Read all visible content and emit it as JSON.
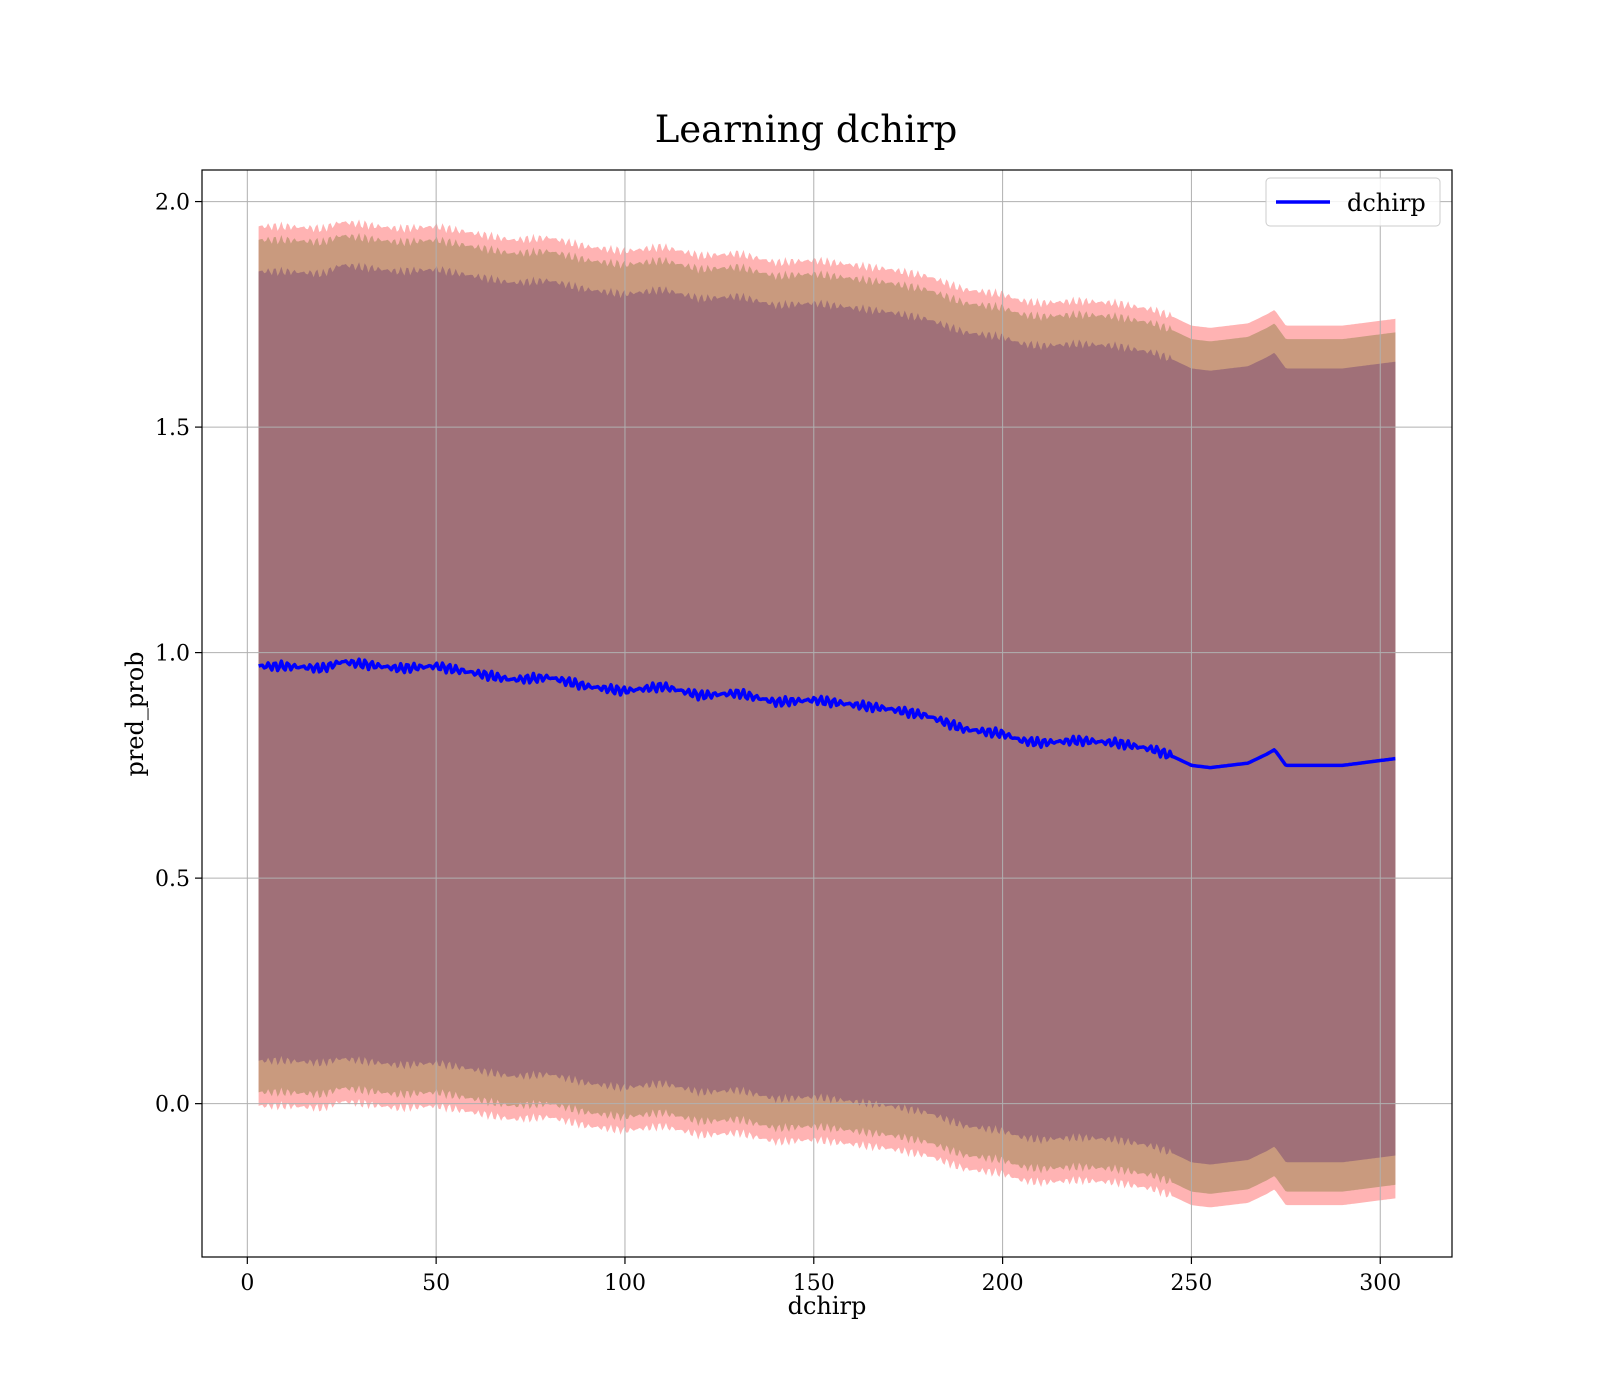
{
  "chart_data": {
    "type": "line",
    "title": "Learning dchirp",
    "xlabel": "dchirp",
    "ylabel": "pred_prob",
    "xlim": [
      -12,
      319
    ],
    "ylim": [
      -0.34,
      2.07
    ],
    "xticks": [
      0,
      50,
      100,
      150,
      200,
      250,
      300
    ],
    "xtick_labels": [
      "0",
      "50",
      "100",
      "150",
      "200",
      "250",
      "300"
    ],
    "yticks": [
      0.0,
      0.5,
      1.0,
      1.5,
      2.0
    ],
    "ytick_labels": [
      "0.0",
      "0.5",
      "1.0",
      "1.5",
      "2.0"
    ],
    "grid": true,
    "legend": {
      "placement": "top-right",
      "entries": [
        "dchirp"
      ]
    },
    "colors": {
      "line": "#0000ff",
      "band_outer": "#ffb3b3",
      "band_middle": "#c99a7e",
      "band_inner": "#a07078",
      "grid": "#b0b0b0"
    },
    "series": [
      {
        "name": "dchirp",
        "x": [
          3,
          10,
          20,
          25,
          30,
          40,
          50,
          60,
          70,
          80,
          90,
          100,
          110,
          120,
          130,
          140,
          150,
          160,
          170,
          180,
          190,
          200,
          205,
          210,
          220,
          230,
          240,
          245,
          250,
          255,
          260,
          265,
          270,
          272,
          275,
          290,
          304
        ],
        "y": [
          0.97,
          0.97,
          0.965,
          0.98,
          0.975,
          0.965,
          0.97,
          0.955,
          0.94,
          0.945,
          0.925,
          0.915,
          0.925,
          0.905,
          0.91,
          0.89,
          0.895,
          0.885,
          0.875,
          0.86,
          0.83,
          0.82,
          0.805,
          0.8,
          0.805,
          0.8,
          0.785,
          0.77,
          0.75,
          0.745,
          0.75,
          0.755,
          0.775,
          0.785,
          0.75,
          0.75,
          0.765
        ],
        "band_inner_halfwidth": [
          0.875,
          0.875,
          0.875,
          0.88,
          0.88,
          0.88,
          0.88,
          0.88,
          0.88,
          0.88,
          0.88,
          0.88,
          0.88,
          0.88,
          0.88,
          0.88,
          0.88,
          0.88,
          0.88,
          0.88,
          0.88,
          0.88,
          0.88,
          0.88,
          0.88,
          0.88,
          0.88,
          0.88,
          0.88,
          0.88,
          0.88,
          0.88,
          0.88,
          0.88,
          0.88,
          0.88,
          0.88
        ],
        "band_middle_halfwidth": [
          0.945,
          0.945,
          0.945,
          0.945,
          0.945,
          0.945,
          0.945,
          0.945,
          0.945,
          0.945,
          0.945,
          0.945,
          0.945,
          0.945,
          0.945,
          0.945,
          0.945,
          0.945,
          0.945,
          0.945,
          0.945,
          0.945,
          0.945,
          0.945,
          0.945,
          0.945,
          0.945,
          0.945,
          0.945,
          0.945,
          0.945,
          0.945,
          0.945,
          0.945,
          0.945,
          0.945,
          0.945
        ],
        "band_outer_halfwidth": [
          0.975,
          0.975,
          0.975,
          0.975,
          0.975,
          0.975,
          0.975,
          0.975,
          0.975,
          0.975,
          0.975,
          0.975,
          0.975,
          0.975,
          0.975,
          0.975,
          0.975,
          0.975,
          0.975,
          0.975,
          0.975,
          0.975,
          0.975,
          0.975,
          0.975,
          0.975,
          0.975,
          0.975,
          0.975,
          0.975,
          0.975,
          0.975,
          0.975,
          0.975,
          0.975,
          0.975,
          0.975
        ]
      }
    ]
  }
}
